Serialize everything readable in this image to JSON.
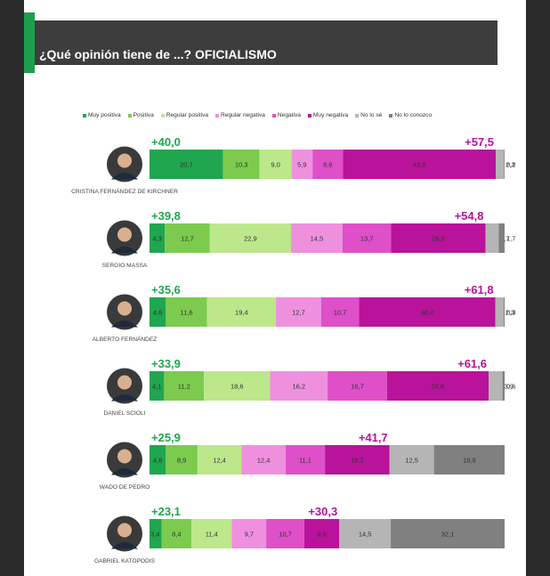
{
  "title": "¿Qué opinión tiene de ...? OFICIALISMO",
  "colors": {
    "Muy positiva": "#1fa64f",
    "Positiva": "#7ccb4e",
    "Regular positiva": "#bde78b",
    "Regular negativa": "#ef90df",
    "Negativa": "#de4fc8",
    "Muy negativa": "#b8139a",
    "No lo sé": "#b5b5b5",
    "No lo conozco": "#808080",
    "positive_total": "#1fa64f",
    "negative_total": "#b8139a"
  },
  "chart_data": {
    "type": "bar",
    "orientation": "horizontal-stacked-100",
    "series_names": [
      "Muy positiva",
      "Positiva",
      "Regular positiva",
      "Regular negativa",
      "Negativa",
      "Muy negativa",
      "No lo sé",
      "No lo conozco"
    ],
    "legend_position": "top",
    "items": [
      {
        "name": "CRISTINA FERNÁNDEZ DE KIRCHNER",
        "positive_total": "+40,0",
        "negative_total": "+57,5",
        "photo": "person-icon",
        "values": [
          20.7,
          10.3,
          9.0,
          5.9,
          8.6,
          43.0,
          2.3,
          0.2
        ],
        "labels": [
          "20,7",
          "10,3",
          "9,0",
          "5,9",
          "8,6",
          "43,0",
          "2,3",
          "0,2"
        ]
      },
      {
        "name": "SERGIO MASSA",
        "positive_total": "+39,8",
        "negative_total": "+54,8",
        "photo": "person-icon",
        "values": [
          4.3,
          12.7,
          22.9,
          14.5,
          13.7,
          26.6,
          3.7,
          1.7
        ],
        "labels": [
          "4,3",
          "12,7",
          "22,9",
          "14,5",
          "13,7",
          "26,6",
          "3,7",
          "1,7"
        ]
      },
      {
        "name": "ALBERTO FERNÁNDEZ",
        "positive_total": "+35,6",
        "negative_total": "+61,8",
        "photo": "person-icon",
        "values": [
          4.6,
          11.6,
          19.4,
          12.7,
          10.7,
          38.4,
          2.3,
          0.3
        ],
        "labels": [
          "4,6",
          "11,6",
          "19,4",
          "12,7",
          "10,7",
          "38,4",
          "2,3",
          "0,3"
        ]
      },
      {
        "name": "DANIEL SCIOLI",
        "positive_total": "+33,9",
        "negative_total": "+61,6",
        "photo": "person-icon",
        "values": [
          4.1,
          11.2,
          18.6,
          16.2,
          16.7,
          28.6,
          3.9,
          0.6
        ],
        "labels": [
          "4,1",
          "11,2",
          "18,6",
          "16,2",
          "16,7",
          "28,6",
          "3,9",
          "0,6"
        ]
      },
      {
        "name": "WADO DE PEDRO",
        "positive_total": "+25,9",
        "negative_total": "+41,7",
        "photo": "person-icon",
        "values": [
          4.6,
          8.9,
          12.4,
          12.4,
          11.1,
          18.2,
          12.5,
          19.9
        ],
        "labels": [
          "4,6",
          "8,9",
          "12,4",
          "12,4",
          "11,1",
          "18,2",
          "12,5",
          "19,9"
        ]
      },
      {
        "name": "GABRIEL KATOPODIS",
        "positive_total": "+23,1",
        "negative_total": "+30,3",
        "photo": "person-icon",
        "values": [
          3.4,
          8.4,
          11.4,
          9.7,
          10.7,
          9.9,
          14.5,
          32.1
        ],
        "labels": [
          "3,4",
          "8,4",
          "11,4",
          "9,7",
          "10,7",
          "9,9",
          "14,5",
          "32,1"
        ]
      }
    ]
  }
}
